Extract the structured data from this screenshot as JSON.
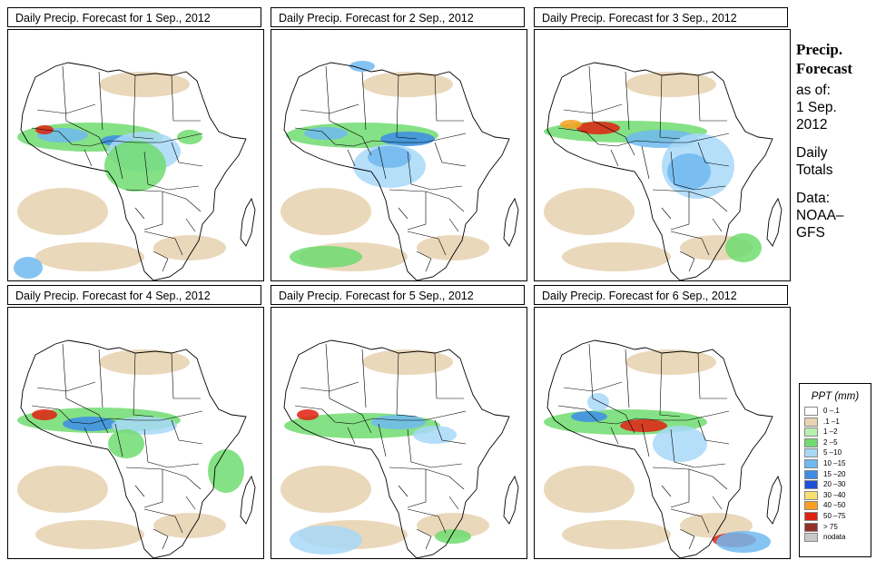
{
  "panels": [
    {
      "title": "Daily Precip. Forecast for  1 Sep., 2012"
    },
    {
      "title": "Daily Precip. Forecast for  2 Sep., 2012"
    },
    {
      "title": "Daily Precip. Forecast for  3 Sep., 2012"
    },
    {
      "title": "Daily Precip. Forecast for  4 Sep., 2012"
    },
    {
      "title": "Daily Precip. Forecast for  5 Sep., 2012"
    },
    {
      "title": "Daily Precip. Forecast for  6 Sep., 2012"
    }
  ],
  "sidebar": {
    "heading_line1": "Precip.",
    "heading_line2": "Forecast",
    "asof_label": "as of:",
    "date_line1": "1 Sep.",
    "date_line2": "2012",
    "totals_line1": "Daily",
    "totals_line2": "Totals",
    "data_label": "Data:",
    "data_source_line1": "NOAA–",
    "data_source_line2": "GFS"
  },
  "legend": {
    "title": "PPT (mm)",
    "entries": [
      {
        "label": "0 –.1",
        "color": "#ffffff"
      },
      {
        "label": ".1 –1",
        "color": "#e8d4b4"
      },
      {
        "label": "1 –2",
        "color": "#b8f0b0"
      },
      {
        "label": "2 –5",
        "color": "#70dc70"
      },
      {
        "label": "5 –10",
        "color": "#a8d8f8"
      },
      {
        "label": "10 –15",
        "color": "#70b8f0"
      },
      {
        "label": "15 –20",
        "color": "#3c8ce8"
      },
      {
        "label": "20 –30",
        "color": "#1e50d8"
      },
      {
        "label": "30 –40",
        "color": "#f8e070"
      },
      {
        "label": "40 –50",
        "color": "#f8a020"
      },
      {
        "label": "50 –75",
        "color": "#e02010"
      },
      {
        "label": "> 75",
        "color": "#903028"
      },
      {
        "label": "nodata",
        "color": "#c8c8c8"
      }
    ]
  }
}
